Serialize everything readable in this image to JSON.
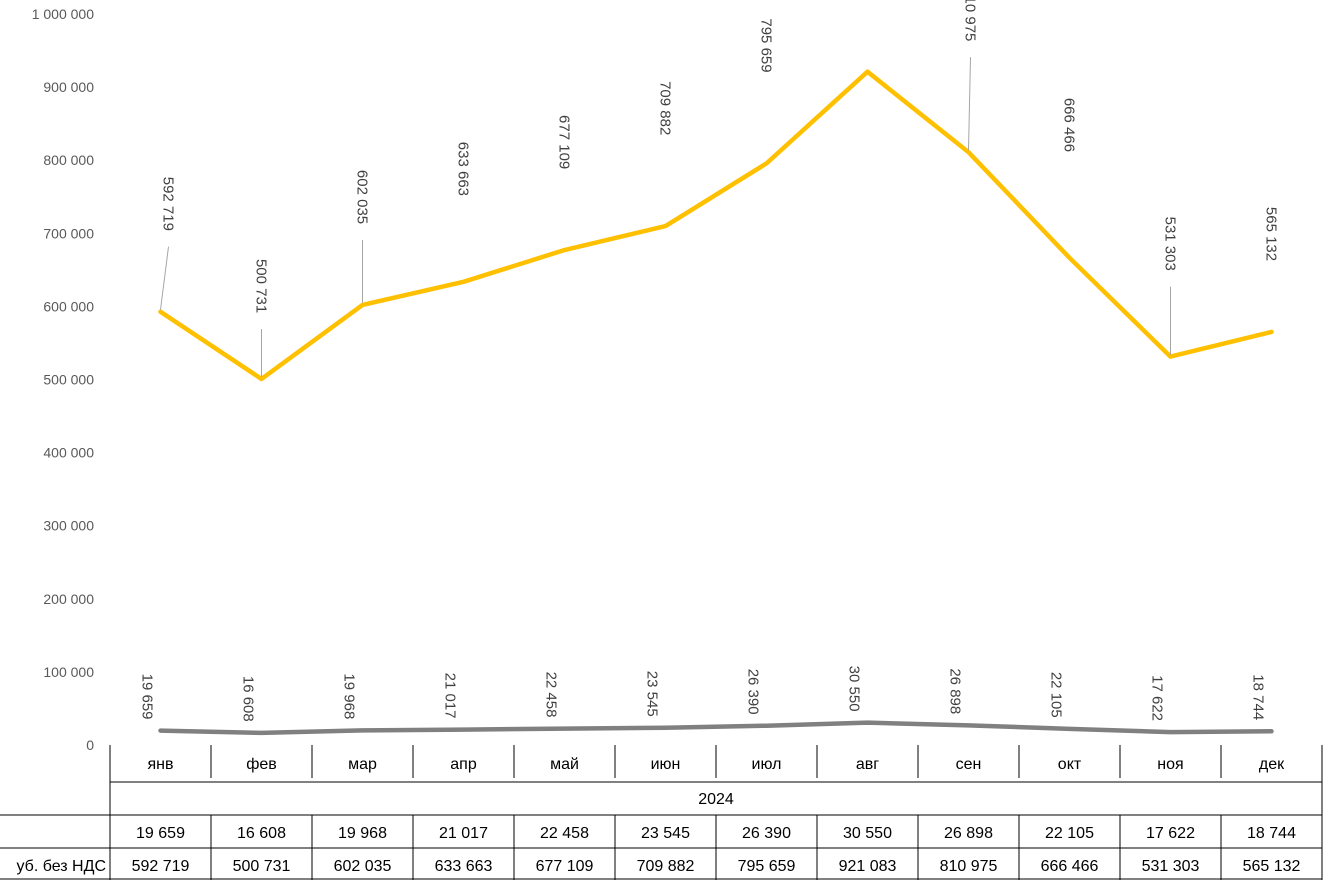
{
  "chart_data": {
    "type": "line",
    "categories": [
      "янв",
      "фев",
      "мар",
      "апр",
      "май",
      "июн",
      "июл",
      "авг",
      "сен",
      "окт",
      "ноя",
      "дек"
    ],
    "group_label": "2024",
    "ylim": [
      0,
      1000000
    ],
    "ytick_labels": [
      "0",
      "100 000",
      "200 000",
      "300 000",
      "400 000",
      "500 000",
      "600 000",
      "700 000",
      "800 000",
      "900 000",
      "1 000 000"
    ],
    "grid": false,
    "data_table": true,
    "series": [
      {
        "row_label": "уб. без НДС",
        "color": "#ffc000",
        "values": [
          592719,
          500731,
          602035,
          633663,
          677109,
          709882,
          795659,
          921083,
          810975,
          666466,
          531303,
          565132
        ],
        "labels": [
          "592 719",
          "500 731",
          "602 035",
          "633 663",
          "677 109",
          "709 882",
          "795 659",
          "921 083",
          "810 975",
          "666 466",
          "531 303",
          "565 132"
        ]
      },
      {
        "row_label": "",
        "color": "#808080",
        "values": [
          19659,
          16608,
          19968,
          21017,
          22458,
          23545,
          26390,
          30550,
          26898,
          22105,
          17622,
          18744
        ],
        "labels": [
          "19 659",
          "16 608",
          "19 968",
          "21 017",
          "22 458",
          "23 545",
          "26 390",
          "30 550",
          "26 898",
          "22 105",
          "17 622",
          "18 744"
        ]
      }
    ]
  }
}
